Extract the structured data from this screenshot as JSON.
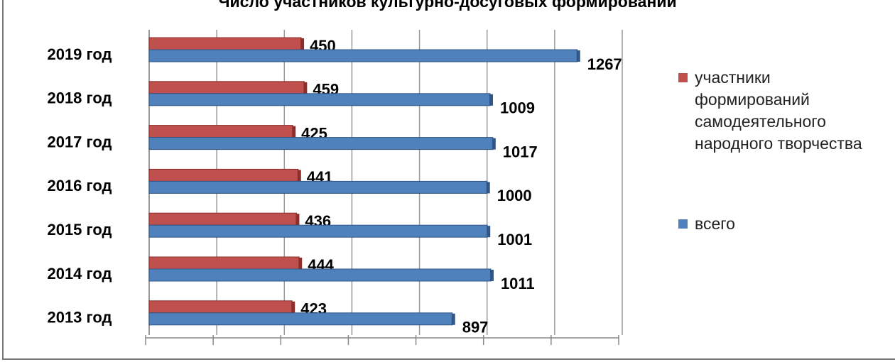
{
  "chart_data": {
    "type": "hbar",
    "title": "Число участников культурно-досуговых формирований",
    "categories": [
      "2019 год",
      "2018 год",
      "2017 год",
      "2016 год",
      "2015 год",
      "2014 год",
      "2013 год"
    ],
    "series": [
      {
        "name": "участники формирований самодеятельного народного творчества",
        "color": "#c0504d",
        "values": [
          450,
          459,
          425,
          441,
          436,
          444,
          423
        ]
      },
      {
        "name": "всего",
        "color": "#4f81bd",
        "values": [
          1267,
          1009,
          1017,
          1000,
          1001,
          1011,
          897
        ]
      }
    ],
    "xlim": [
      0,
      1400
    ],
    "xticks": [
      0,
      200,
      400,
      600,
      800,
      1000,
      1200,
      1400
    ],
    "grid": true
  }
}
